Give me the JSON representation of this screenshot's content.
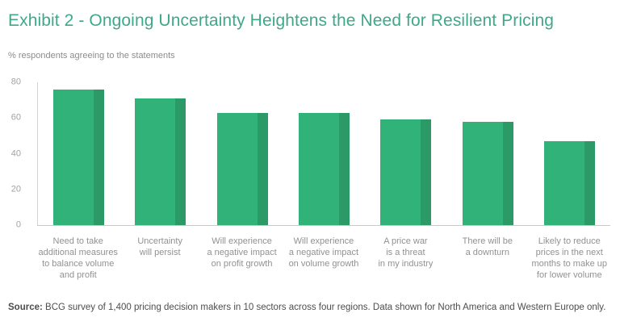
{
  "header": {
    "title": "Exhibit 2 - Ongoing Uncertainty Heightens the Need for Resilient Pricing",
    "title_color": "#3fa889"
  },
  "chart_data": {
    "type": "bar",
    "title": "Exhibit 2 - Ongoing Uncertainty Heightens the Need for Resilient Pricing",
    "subtitle": "% respondents agreeing to the statements",
    "categories": [
      "Need to take\nadditional measures\nto balance volume\nand profit",
      "Uncertainty\nwill persist",
      "Will experience\na negative impact\non profit growth",
      "Will experience\na negative impact\non volume growth",
      "A price war\nis a threat\nin my industry",
      "There will be\na downturn",
      "Likely to reduce\nprices in the next\nmonths to make up\nfor lower volume"
    ],
    "values": [
      76,
      71,
      63,
      63,
      59,
      58,
      47
    ],
    "ylim": [
      0,
      80
    ],
    "yticks": [
      0,
      20,
      40,
      60,
      80
    ],
    "xlabel": "",
    "ylabel": "",
    "grid": false,
    "legend": false,
    "bar_color": "#31b278",
    "bar_shade_color": "#2c9a66",
    "axis_color": "#cccccc"
  },
  "footer": {
    "source_label": "Source:",
    "source_text": " BCG survey of 1,400 pricing decision makers in 10 sectors across four regions. Data shown for North America and Western Europe only."
  }
}
